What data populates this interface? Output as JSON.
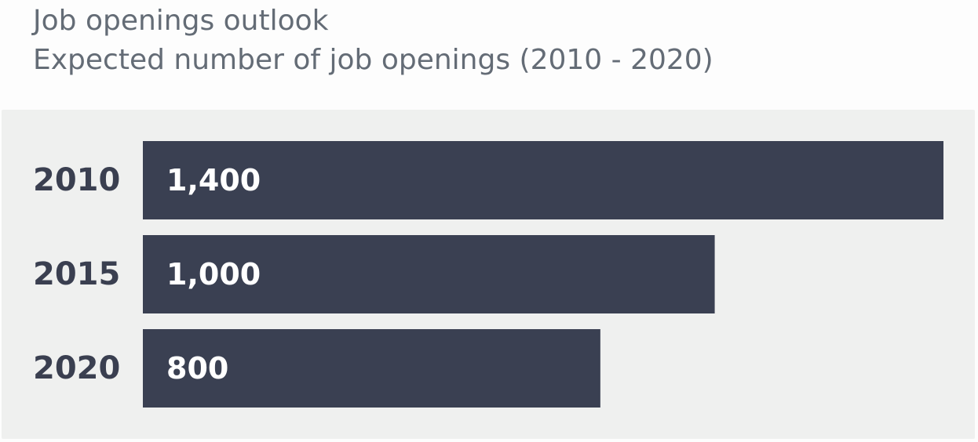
{
  "header": {
    "title": "Job openings outlook",
    "subtitle": "Expected number of job openings (2010 - 2020)"
  },
  "chart_data": {
    "type": "bar",
    "orientation": "horizontal",
    "title": "Job openings outlook",
    "subtitle": "Expected number of job openings (2010 - 2020)",
    "categories": [
      "2010",
      "2015",
      "2020"
    ],
    "values": [
      1400,
      1000,
      800
    ],
    "value_labels": [
      "1,400",
      "1,000",
      "800"
    ],
    "xlim": [
      0,
      1400
    ],
    "grid": false,
    "legend": "none",
    "colors": {
      "bar": "#3a4052",
      "value_text": "#ffffff",
      "category_text": "#3a3f50",
      "background": "#eff0ef"
    }
  }
}
